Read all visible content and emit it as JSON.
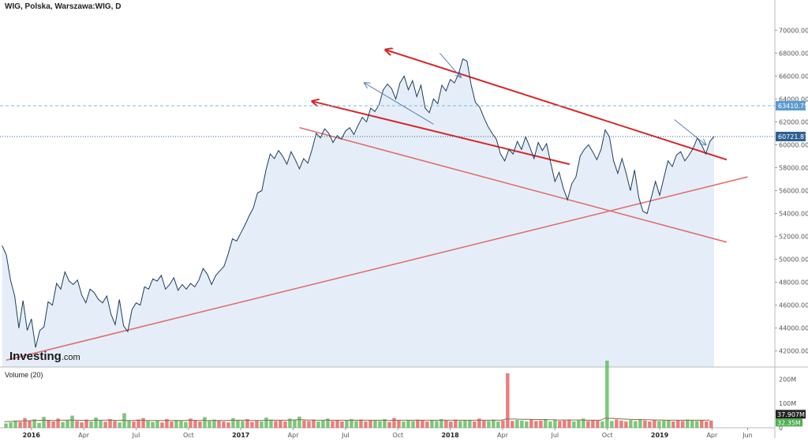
{
  "chart_data": {
    "type": "line",
    "title": "WIG, Polska, Warszawa:WIG, D",
    "y_ticks": [
      "42000.00",
      "44000.00",
      "46000.00",
      "48000.00",
      "50000.00",
      "52000.00",
      "54000.00",
      "56000.00",
      "58000.00",
      "60000.00",
      "62000.00",
      "64000.00",
      "66000.00",
      "68000.00",
      "70000.00"
    ],
    "ylim": [
      40600,
      71400
    ],
    "x_ticks": [
      {
        "label": "2016",
        "t": 0.0,
        "year": true
      },
      {
        "label": "Apr",
        "t": 0.25
      },
      {
        "label": "Jul",
        "t": 0.5
      },
      {
        "label": "Oct",
        "t": 0.75
      },
      {
        "label": "2017",
        "t": 1.0,
        "year": true
      },
      {
        "label": "Apr",
        "t": 1.25
      },
      {
        "label": "Jul",
        "t": 1.5
      },
      {
        "label": "Oct",
        "t": 1.75
      },
      {
        "label": "2018",
        "t": 2.0,
        "year": true
      },
      {
        "label": "Apr",
        "t": 2.25
      },
      {
        "label": "Jul",
        "t": 2.5
      },
      {
        "label": "Oct",
        "t": 2.75
      },
      {
        "label": "2019",
        "t": 3.0,
        "year": true
      },
      {
        "label": "Apr",
        "t": 3.25
      },
      {
        "label": "Jun",
        "t": 3.42
      }
    ],
    "xlim": [
      -0.15,
      3.55
    ],
    "series": [
      {
        "values": [
          [
            -0.14,
            51200
          ],
          [
            -0.12,
            50400
          ],
          [
            -0.1,
            48200
          ],
          [
            -0.08,
            46800
          ],
          [
            -0.06,
            44000
          ],
          [
            -0.04,
            46400
          ],
          [
            -0.02,
            43800
          ],
          [
            0.0,
            44800
          ],
          [
            0.02,
            42300
          ],
          [
            0.04,
            43800
          ],
          [
            0.06,
            44100
          ],
          [
            0.08,
            46300
          ],
          [
            0.1,
            46000
          ],
          [
            0.12,
            47900
          ],
          [
            0.14,
            47400
          ],
          [
            0.16,
            48900
          ],
          [
            0.18,
            48100
          ],
          [
            0.2,
            47800
          ],
          [
            0.22,
            48200
          ],
          [
            0.24,
            46900
          ],
          [
            0.26,
            46200
          ],
          [
            0.28,
            47400
          ],
          [
            0.3,
            47100
          ],
          [
            0.32,
            46500
          ],
          [
            0.34,
            46200
          ],
          [
            0.36,
            46800
          ],
          [
            0.38,
            45200
          ],
          [
            0.4,
            44300
          ],
          [
            0.42,
            46500
          ],
          [
            0.44,
            44200
          ],
          [
            0.46,
            43700
          ],
          [
            0.48,
            45600
          ],
          [
            0.5,
            46200
          ],
          [
            0.52,
            46000
          ],
          [
            0.54,
            47600
          ],
          [
            0.56,
            47400
          ],
          [
            0.58,
            48300
          ],
          [
            0.6,
            48100
          ],
          [
            0.62,
            48600
          ],
          [
            0.64,
            47400
          ],
          [
            0.66,
            47800
          ],
          [
            0.68,
            48400
          ],
          [
            0.7,
            47300
          ],
          [
            0.72,
            47800
          ],
          [
            0.74,
            47400
          ],
          [
            0.76,
            47900
          ],
          [
            0.78,
            47600
          ],
          [
            0.8,
            48200
          ],
          [
            0.82,
            49200
          ],
          [
            0.84,
            48700
          ],
          [
            0.86,
            47800
          ],
          [
            0.88,
            48600
          ],
          [
            0.9,
            49000
          ],
          [
            0.92,
            49400
          ],
          [
            0.94,
            50500
          ],
          [
            0.96,
            51800
          ],
          [
            0.98,
            51600
          ],
          [
            1.0,
            52300
          ],
          [
            1.02,
            53000
          ],
          [
            1.04,
            53800
          ],
          [
            1.06,
            54500
          ],
          [
            1.08,
            55800
          ],
          [
            1.1,
            56000
          ],
          [
            1.12,
            57800
          ],
          [
            1.14,
            59200
          ],
          [
            1.16,
            58800
          ],
          [
            1.18,
            59500
          ],
          [
            1.2,
            59000
          ],
          [
            1.22,
            58300
          ],
          [
            1.24,
            59400
          ],
          [
            1.26,
            58700
          ],
          [
            1.28,
            57900
          ],
          [
            1.3,
            58800
          ],
          [
            1.32,
            58400
          ],
          [
            1.34,
            59600
          ],
          [
            1.36,
            61000
          ],
          [
            1.38,
            60600
          ],
          [
            1.4,
            61400
          ],
          [
            1.42,
            61000
          ],
          [
            1.44,
            60200
          ],
          [
            1.46,
            60800
          ],
          [
            1.48,
            60500
          ],
          [
            1.5,
            61200
          ],
          [
            1.52,
            61500
          ],
          [
            1.54,
            60900
          ],
          [
            1.56,
            61700
          ],
          [
            1.58,
            62400
          ],
          [
            1.6,
            62000
          ],
          [
            1.62,
            63200
          ],
          [
            1.64,
            62900
          ],
          [
            1.66,
            63500
          ],
          [
            1.68,
            64800
          ],
          [
            1.7,
            65300
          ],
          [
            1.72,
            64900
          ],
          [
            1.74,
            64000
          ],
          [
            1.76,
            65400
          ],
          [
            1.78,
            66000
          ],
          [
            1.8,
            64800
          ],
          [
            1.82,
            65600
          ],
          [
            1.84,
            64200
          ],
          [
            1.86,
            65200
          ],
          [
            1.88,
            63200
          ],
          [
            1.9,
            62800
          ],
          [
            1.92,
            64000
          ],
          [
            1.94,
            63600
          ],
          [
            1.96,
            65200
          ],
          [
            1.98,
            64700
          ],
          [
            2.0,
            65700
          ],
          [
            2.02,
            65400
          ],
          [
            2.04,
            66200
          ],
          [
            2.06,
            67500
          ],
          [
            2.08,
            67300
          ],
          [
            2.1,
            65200
          ],
          [
            2.12,
            63700
          ],
          [
            2.14,
            63300
          ],
          [
            2.16,
            62400
          ],
          [
            2.18,
            61600
          ],
          [
            2.2,
            61000
          ],
          [
            2.22,
            60500
          ],
          [
            2.24,
            59200
          ],
          [
            2.26,
            58600
          ],
          [
            2.28,
            59600
          ],
          [
            2.3,
            59200
          ],
          [
            2.32,
            60300
          ],
          [
            2.34,
            59600
          ],
          [
            2.36,
            60700
          ],
          [
            2.38,
            59800
          ],
          [
            2.4,
            58800
          ],
          [
            2.42,
            60200
          ],
          [
            2.44,
            59500
          ],
          [
            2.46,
            60100
          ],
          [
            2.48,
            58400
          ],
          [
            2.5,
            56800
          ],
          [
            2.52,
            57600
          ],
          [
            2.54,
            56200
          ],
          [
            2.56,
            55200
          ],
          [
            2.58,
            56600
          ],
          [
            2.6,
            57200
          ],
          [
            2.62,
            59000
          ],
          [
            2.64,
            59600
          ],
          [
            2.66,
            60000
          ],
          [
            2.68,
            59400
          ],
          [
            2.7,
            58700
          ],
          [
            2.72,
            59600
          ],
          [
            2.74,
            61300
          ],
          [
            2.76,
            60700
          ],
          [
            2.78,
            58600
          ],
          [
            2.8,
            57500
          ],
          [
            2.82,
            58800
          ],
          [
            2.84,
            57500
          ],
          [
            2.86,
            56000
          ],
          [
            2.88,
            57800
          ],
          [
            2.9,
            55400
          ],
          [
            2.92,
            54200
          ],
          [
            2.94,
            54000
          ],
          [
            2.96,
            55400
          ],
          [
            2.98,
            56800
          ],
          [
            3.0,
            55600
          ],
          [
            3.02,
            57100
          ],
          [
            3.04,
            58600
          ],
          [
            3.06,
            58100
          ],
          [
            3.08,
            59100
          ],
          [
            3.1,
            59400
          ],
          [
            3.12,
            58600
          ],
          [
            3.14,
            59100
          ],
          [
            3.16,
            59700
          ],
          [
            3.18,
            60600
          ],
          [
            3.2,
            60000
          ],
          [
            3.22,
            59200
          ],
          [
            3.24,
            60300
          ],
          [
            3.26,
            60721
          ]
        ]
      }
    ],
    "volume": {
      "label": "Volume (20)",
      "ticks": [
        "200M",
        "100M",
        "0"
      ],
      "max": 240,
      "bars": [
        18,
        22,
        30,
        25,
        40,
        28,
        35,
        20,
        45,
        32,
        26,
        38,
        24,
        30,
        50,
        28,
        22,
        34,
        26,
        42,
        30,
        25,
        36,
        28,
        22,
        60,
        30,
        26,
        34,
        40,
        28,
        24,
        30,
        22,
        36,
        26,
        32,
        28,
        24,
        38,
        30,
        26,
        44,
        28,
        34,
        30,
        26,
        22,
        40,
        32,
        28,
        36,
        24,
        30,
        26,
        42,
        34,
        28,
        30,
        26,
        38,
        32,
        46,
        30,
        28,
        34,
        26,
        30,
        38,
        28,
        32,
        26,
        30,
        36,
        28,
        34,
        26,
        32,
        30,
        28,
        36,
        24,
        40,
        30,
        26,
        32,
        28,
        34,
        30,
        26,
        32,
        28,
        36,
        30,
        26,
        34,
        28,
        30,
        32,
        26,
        38,
        30,
        28,
        34,
        26,
        30,
        224,
        28,
        32,
        30,
        26,
        34,
        28,
        30,
        36,
        26,
        32,
        28,
        30,
        34,
        26,
        30,
        38,
        28,
        32,
        30,
        26,
        276,
        28,
        34,
        30,
        26,
        32,
        28,
        36,
        30,
        26,
        34,
        28,
        30,
        32,
        26,
        30,
        28,
        34,
        30,
        28,
        32,
        26,
        30
      ],
      "ma": [
        25,
        26,
        27,
        28,
        29,
        29,
        30,
        30,
        31,
        31,
        30,
        30,
        31,
        31,
        32,
        31,
        31,
        30,
        30,
        31,
        31,
        31,
        32,
        31,
        30,
        31,
        30,
        30,
        31,
        31,
        30,
        30,
        30,
        30,
        30,
        30,
        30,
        30,
        30,
        31,
        31,
        30,
        31,
        30,
        30,
        30,
        30,
        30,
        31,
        31,
        31,
        31,
        30,
        30,
        30,
        31,
        31,
        31,
        31,
        31,
        31,
        32,
        33,
        33,
        32,
        32,
        31,
        31,
        32,
        31,
        31,
        31,
        31,
        31,
        31,
        31,
        31,
        31,
        31,
        31,
        31,
        30,
        31,
        31,
        31,
        31,
        31,
        31,
        31,
        31,
        31,
        31,
        31,
        31,
        31,
        31,
        31,
        31,
        31,
        31,
        31,
        31,
        31,
        31,
        31,
        31,
        36,
        36,
        36,
        35,
        35,
        35,
        34,
        34,
        34,
        33,
        33,
        32,
        32,
        32,
        32,
        32,
        32,
        31,
        31,
        31,
        31,
        40,
        39,
        38,
        37,
        36,
        35,
        34,
        34,
        33,
        33,
        32,
        32,
        32,
        31,
        31,
        31,
        31,
        31,
        31,
        31,
        31,
        31,
        31
      ],
      "last_values": [
        "37.907M",
        "32.35M"
      ]
    },
    "price_labels": {
      "resistance": {
        "value": 63410.75,
        "label": "63410.75"
      },
      "last": {
        "value": 60721.87,
        "label": "60721.87"
      }
    },
    "trendlines": [
      {
        "color": "#d62728",
        "arrow": true,
        "points": [
          [
            1.34,
            63800
          ],
          [
            2.57,
            58300
          ]
        ]
      },
      {
        "color": "#d62728",
        "arrow": true,
        "points": [
          [
            1.69,
            68300
          ],
          [
            3.32,
            58700
          ]
        ]
      },
      {
        "color": "#e07070",
        "arrow": false,
        "points": [
          [
            1.28,
            61500
          ],
          [
            3.32,
            51500
          ]
        ]
      },
      {
        "color": "#e07070",
        "arrow": false,
        "points": [
          [
            -0.12,
            41200
          ],
          [
            3.42,
            57200
          ]
        ]
      }
    ],
    "blue_arrows": [
      {
        "from": [
          1.92,
          61800
        ],
        "to": [
          1.59,
          65400
        ]
      },
      {
        "from": [
          1.95,
          68000
        ],
        "to": [
          2.05,
          65900
        ]
      },
      {
        "from": [
          3.07,
          62200
        ],
        "to": [
          3.22,
          60000
        ]
      }
    ],
    "colors": {
      "line": "#1f3b5c",
      "area": "#dce8f5",
      "up": "#5cb85c",
      "down": "#e06060",
      "badge_blue": "#2f5f8f",
      "badge_green": "#4caf50"
    },
    "grid": false,
    "watermark": {
      "brand": "Investing",
      "suffix": ".com"
    }
  }
}
